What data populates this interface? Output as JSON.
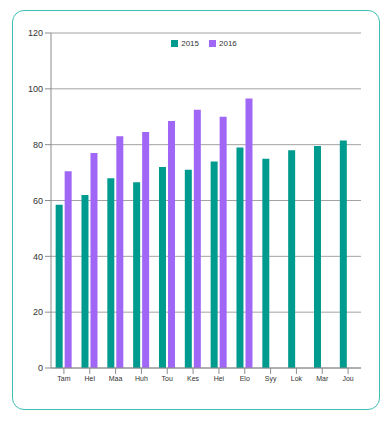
{
  "chart_data": {
    "type": "bar",
    "categories": [
      "Tam",
      "Hel",
      "Maa",
      "Huh",
      "Tou",
      "Kes",
      "Hei",
      "Elo",
      "Syy",
      "Lok",
      "Mar",
      "Jou"
    ],
    "series": [
      {
        "name": "2015",
        "color": "#009b8f",
        "values": [
          58.5,
          62,
          68,
          66.5,
          72,
          71,
          74,
          79,
          75,
          78,
          79.5,
          81.5
        ]
      },
      {
        "name": "2016",
        "color": "#a066f5",
        "values": [
          70.5,
          77,
          83,
          84.5,
          88.5,
          92.5,
          90,
          96.5,
          null,
          null,
          null,
          null
        ]
      }
    ],
    "ylim": [
      0,
      120
    ],
    "yticks": [
      0,
      20,
      40,
      60,
      80,
      100,
      120
    ],
    "grid": true,
    "legend": "top"
  }
}
